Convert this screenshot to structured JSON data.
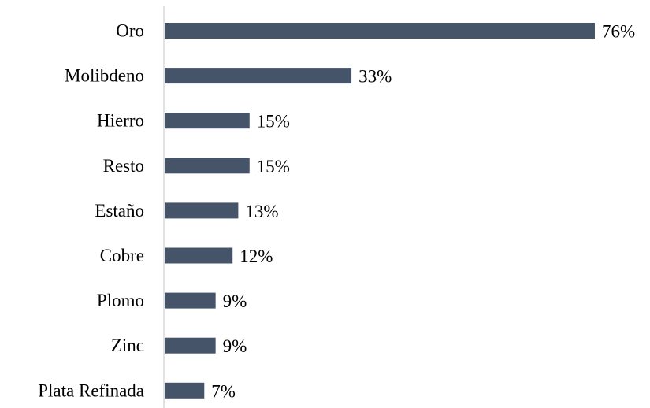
{
  "chart_data": {
    "type": "bar",
    "orientation": "horizontal",
    "categories": [
      "Oro",
      "Molibdeno",
      "Hierro",
      "Resto",
      "Estaño",
      "Cobre",
      "Plomo",
      "Zinc",
      "Plata Refinada"
    ],
    "values": [
      76,
      33,
      15,
      15,
      13,
      12,
      9,
      9,
      7
    ],
    "value_labels": [
      "76%",
      "33%",
      "15%",
      "15%",
      "13%",
      "12%",
      "9%",
      "9%",
      "7%"
    ],
    "title": "",
    "xlabel": "",
    "ylabel": "",
    "xlim": [
      0,
      76
    ],
    "grid": false,
    "legend": "none",
    "colors": {
      "bar": "#46546a",
      "axis": "#d9d9d9",
      "text": "#000000"
    }
  }
}
